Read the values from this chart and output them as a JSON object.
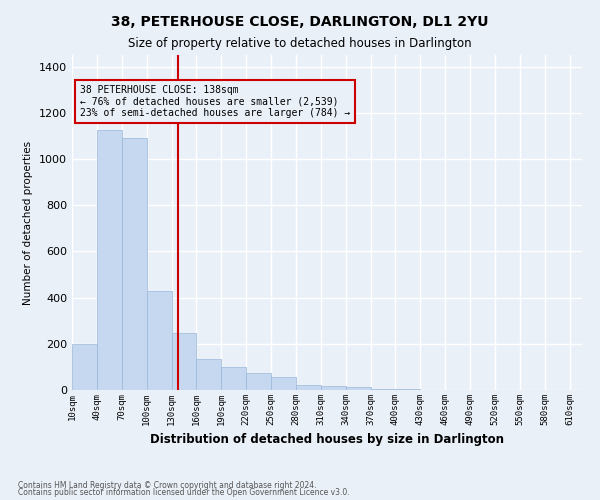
{
  "title": "38, PETERHOUSE CLOSE, DARLINGTON, DL1 2YU",
  "subtitle": "Size of property relative to detached houses in Darlington",
  "xlabel": "Distribution of detached houses by size in Darlington",
  "ylabel": "Number of detached properties",
  "footer1": "Contains HM Land Registry data © Crown copyright and database right 2024.",
  "footer2": "Contains public sector information licensed under the Open Government Licence v3.0.",
  "bar_color": "#c5d8f0",
  "bar_edgecolor": "#9ab8d8",
  "annotation_box_color": "#cc0000",
  "vline_color": "#cc0000",
  "vline_x": 138,
  "annotation_text": "38 PETERHOUSE CLOSE: 138sqm\n← 76% of detached houses are smaller (2,539)\n23% of semi-detached houses are larger (784) →",
  "background_color": "#eaf0f8",
  "grid_color": "#ffffff",
  "bins": [
    10,
    40,
    70,
    100,
    130,
    160,
    190,
    220,
    250,
    280,
    310,
    340,
    370,
    400,
    430,
    460,
    490,
    520,
    550,
    580,
    610
  ],
  "counts": [
    200,
    1125,
    1090,
    430,
    245,
    135,
    100,
    75,
    55,
    20,
    18,
    12,
    5,
    3,
    0,
    0,
    2,
    0,
    0,
    0
  ],
  "ylim": [
    0,
    1450
  ],
  "yticks": [
    0,
    200,
    400,
    600,
    800,
    1000,
    1200,
    1400
  ]
}
